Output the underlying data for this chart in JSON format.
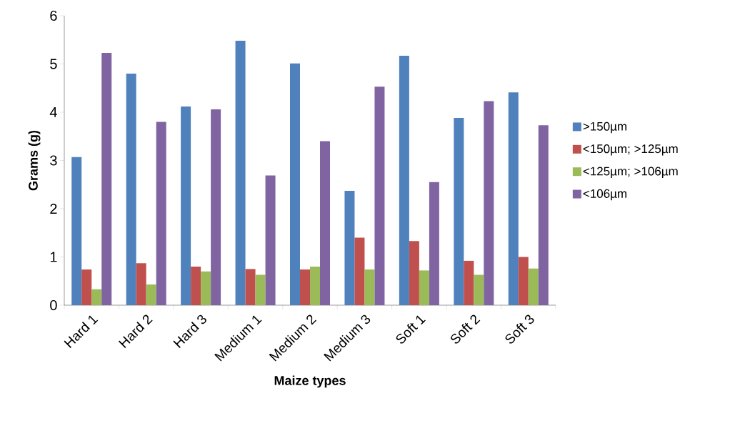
{
  "chart_data": {
    "type": "bar",
    "xlabel": "Maize types",
    "ylabel": "Grams (g)",
    "categories": [
      "Hard 1",
      "Hard 2",
      "Hard 3",
      "Medium 1",
      "Medium 2",
      "Medium 3",
      "Soft 1",
      "Soft 2",
      "Soft 3"
    ],
    "series": [
      {
        "name": ">150µm",
        "color": "#4f81bd",
        "values": [
          3.07,
          4.8,
          4.12,
          5.48,
          5.01,
          2.37,
          5.17,
          3.88,
          4.41
        ]
      },
      {
        "name": "<150µm; >125µm",
        "color": "#c0504d",
        "values": [
          0.74,
          0.87,
          0.8,
          0.75,
          0.74,
          1.4,
          1.33,
          0.92,
          1.0
        ]
      },
      {
        "name": "<125µm; >106µm",
        "color": "#9bbb59",
        "values": [
          0.33,
          0.43,
          0.7,
          0.63,
          0.8,
          0.74,
          0.72,
          0.63,
          0.76
        ]
      },
      {
        "name": "<106µm",
        "color": "#8064a2",
        "values": [
          5.23,
          3.8,
          4.06,
          2.69,
          3.4,
          4.53,
          2.55,
          4.23,
          3.73
        ]
      }
    ],
    "ylim": [
      0,
      6
    ],
    "yticks": [
      0,
      1,
      2,
      3,
      4,
      5,
      6
    ],
    "grid": false,
    "legend": "right"
  }
}
